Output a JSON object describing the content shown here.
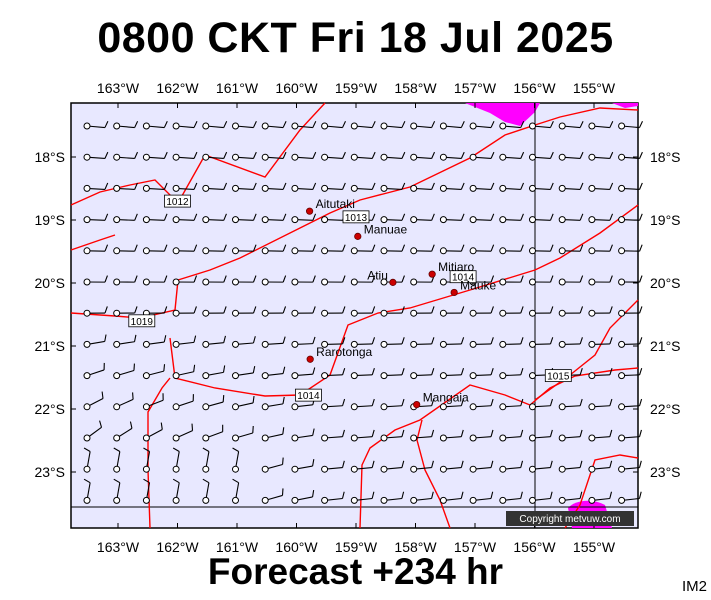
{
  "header": {
    "title": "0800 CKT Fri 18 Jul 2025"
  },
  "footer": {
    "forecast": "Forecast +234 hr",
    "code": "IM2"
  },
  "copyright": "Copyright metvuw.com",
  "axes": {
    "lon_labels": [
      "163°W",
      "162°W",
      "161°W",
      "160°W",
      "159°W",
      "158°W",
      "157°W",
      "156°W",
      "155°W"
    ],
    "lat_labels": [
      "18°S",
      "19°S",
      "20°S",
      "21°S",
      "22°S",
      "23°S"
    ]
  },
  "places": [
    {
      "name": "Aitutaki",
      "lon": -159.78,
      "lat": -18.86
    },
    {
      "name": "Manuae",
      "lon": -158.97,
      "lat": -19.26
    },
    {
      "name": "Mitiaro",
      "lon": -157.72,
      "lat": -19.86
    },
    {
      "name": "Atiu",
      "lon": -158.38,
      "lat": -19.99
    },
    {
      "name": "Mauke",
      "lon": -157.35,
      "lat": -20.15
    },
    {
      "name": "Rarotonga",
      "lon": -159.77,
      "lat": -21.21
    },
    {
      "name": "Mangaia",
      "lon": -157.98,
      "lat": -21.93
    }
  ],
  "isobar_labels": [
    {
      "text": "1012",
      "lon": -162.0,
      "lat": -18.7
    },
    {
      "text": "1013",
      "lon": -159.0,
      "lat": -18.95
    },
    {
      "text": "1014",
      "lon": -157.2,
      "lat": -19.9
    },
    {
      "text": "1015",
      "lon": -155.6,
      "lat": -21.47
    },
    {
      "text": "1014",
      "lon": -159.8,
      "lat": -21.78
    },
    {
      "text": "1019",
      "lon": -162.6,
      "lat": -20.6
    }
  ],
  "colors": {
    "map_bg": "#e8e8ff",
    "isobar": "#ff0000",
    "high_wind": "#ff00ff",
    "place_dot": "#cc0000"
  }
}
